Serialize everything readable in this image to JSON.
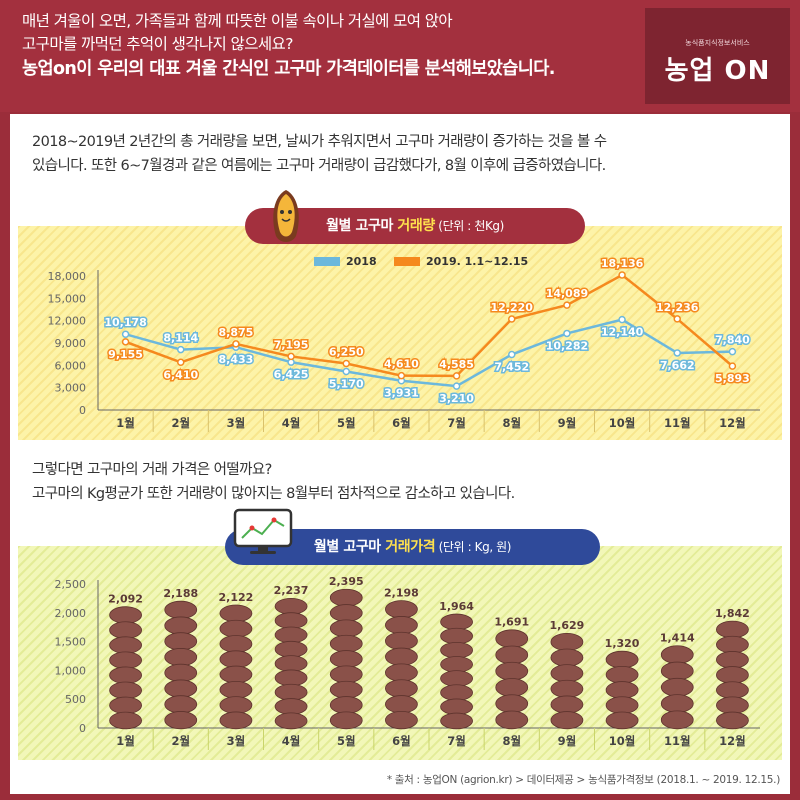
{
  "header": {
    "line1": "매년 겨울이 오면, 가족들과 함께 따뜻한 이불 속이나 거실에 모여 앉아",
    "line2": "고구마를 까먹던 추억이 생각나지 않으세요?",
    "line3": "농업on이 우리의 대표 겨울 간식인 고구마 가격데이터를 분석해보았습니다."
  },
  "logo": {
    "small": "농식품지식정보서비스",
    "main": "농업 ON"
  },
  "intro": {
    "line1": "2018~2019년 2년간의 총 거래량을 보면, 날씨가 추워지면서 고구마 거래량이 증가하는 것을 볼 수",
    "line2": "있습니다. 또한 6~7월경과 같은 여름에는 고구마 거래량이 급감했다가, 8월 이후에 급증하였습니다."
  },
  "chart1_title": {
    "prefix": "월별 고구마 ",
    "highlight": "거래량",
    "unit": " (단위 : 천Kg)"
  },
  "mid": {
    "line1": "그렇다면 고구마의 거래 가격은 어떨까요?",
    "line2": "고구마의 Kg평균가 또한 거래량이 많아지는 8월부터 점차적으로 감소하고 있습니다."
  },
  "chart2_title": {
    "prefix": "월별 고구마 ",
    "highlight": "거래가격",
    "unit": " (단위 : Kg, 원)"
  },
  "source": "* 출처 : 농업ON (agrion.kr) > 데이터제공 > 농식품가격정보 (2018.1. ~ 2019. 12.15.)",
  "chart_data": [
    {
      "type": "line",
      "categories": [
        "1월",
        "2월",
        "3월",
        "4월",
        "5월",
        "6월",
        "7월",
        "8월",
        "9월",
        "10월",
        "11월",
        "12월"
      ],
      "series": [
        {
          "name": "2018",
          "color": "#6cb8dc",
          "values": [
            10178,
            8114,
            8433,
            6425,
            5170,
            3931,
            3210,
            7452,
            10282,
            12140,
            7662,
            7840
          ]
        },
        {
          "name": "2019. 1.1~12.15",
          "color": "#f5891e",
          "values": [
            9155,
            6410,
            8875,
            7195,
            6250,
            4610,
            4585,
            12220,
            14089,
            18136,
            12236,
            5893
          ]
        }
      ],
      "ylim": [
        0,
        18000
      ],
      "yticks": [
        0,
        3000,
        6000,
        9000,
        12000,
        15000,
        18000
      ],
      "ytick_labels": [
        "0",
        "3,000",
        "6,000",
        "9,000",
        "12,000",
        "15,000",
        "18,000"
      ],
      "value_labels": {
        "2018": [
          "10,178",
          "8,114",
          "8,433",
          "6,425",
          "5,170",
          "3,931",
          "3,210",
          "7,452",
          "10,282",
          "12,140",
          "7,662",
          "7,840"
        ],
        "2019. 1.1~12.15": [
          "9,155",
          "6,410",
          "8,875",
          "7,195",
          "6,250",
          "4,610",
          "4,585",
          "12,220",
          "14,089",
          "18,136",
          "12,236",
          "5,893"
        ]
      },
      "legend": "top-center",
      "grid": false
    },
    {
      "type": "bar",
      "categories": [
        "1월",
        "2월",
        "3월",
        "4월",
        "5월",
        "6월",
        "7월",
        "8월",
        "9월",
        "10월",
        "11월",
        "12월"
      ],
      "values": [
        2092,
        2188,
        2122,
        2237,
        2395,
        2198,
        1964,
        1691,
        1629,
        1320,
        1414,
        1842
      ],
      "value_labels": [
        "2,092",
        "2,188",
        "2,122",
        "2,237",
        "2,395",
        "2,198",
        "1,964",
        "1,691",
        "1,629",
        "1,320",
        "1,414",
        "1,842"
      ],
      "ylim": [
        0,
        2500
      ],
      "yticks": [
        0,
        500,
        1000,
        1500,
        2000,
        2500
      ],
      "ytick_labels": [
        "0",
        "500",
        "1,000",
        "1,500",
        "2,000",
        "2,500"
      ],
      "bar_color": "#8a5149",
      "grid": false
    }
  ]
}
